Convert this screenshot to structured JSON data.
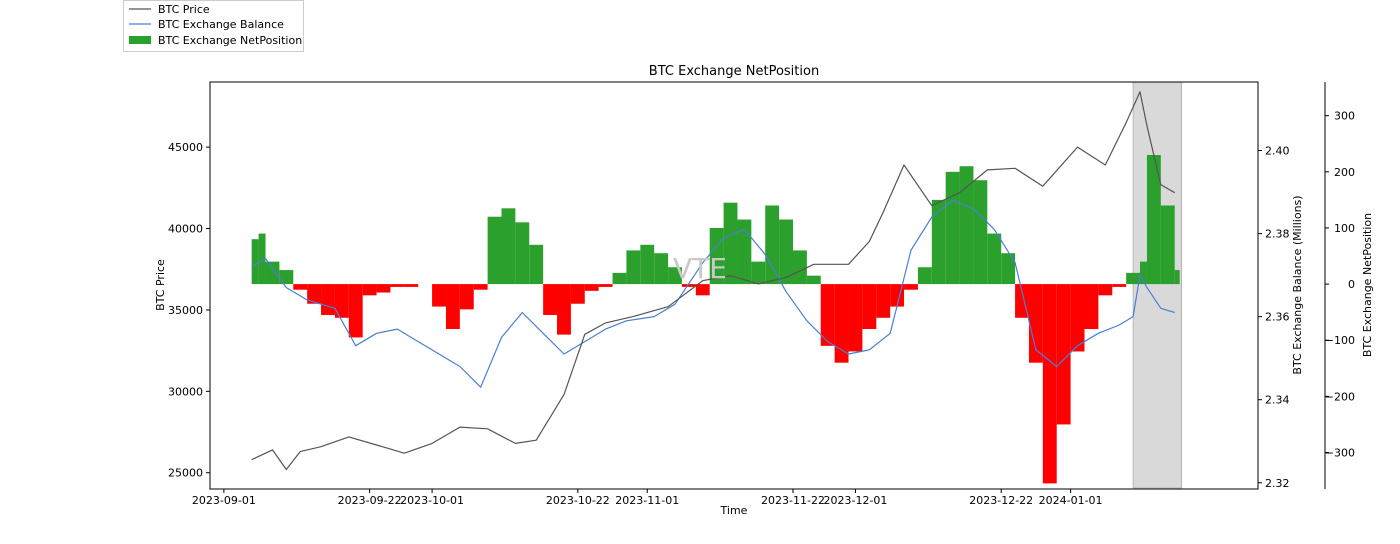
{
  "chart_data": {
    "type": "line+bar",
    "title": "BTC Exchange NetPosition",
    "xlabel": "Time",
    "watermark": "VTE",
    "x_ticks": [
      "2023-09-01",
      "2023-09-22",
      "2023-10-01",
      "2023-10-22",
      "2023-11-01",
      "2023-11-22",
      "2023-12-01",
      "2023-12-22",
      "2024-01-01"
    ],
    "x_range": [
      "2023-08-30",
      "2024-01-28"
    ],
    "highlight_range": [
      "2024-01-10",
      "2024-01-17"
    ],
    "axes": {
      "left": {
        "label": "BTC Price",
        "range": [
          24000,
          49000
        ],
        "ticks": [
          25000,
          30000,
          35000,
          40000,
          45000
        ]
      },
      "right1": {
        "label": "BTC Exchange Balance (Millions)",
        "range": [
          2.3185,
          2.4165
        ],
        "ticks": [
          "2.32",
          "2.34",
          "2.36",
          "2.38",
          "2.40"
        ]
      },
      "right2": {
        "label": "BTC Exchange NetPosition",
        "range": [
          -365,
          360
        ],
        "ticks": [
          300,
          200,
          100,
          0,
          -100,
          -200,
          -300
        ]
      }
    },
    "legend": [
      {
        "name": "BTC Price",
        "color": "#555555",
        "kind": "line"
      },
      {
        "name": "BTC Exchange Balance",
        "color": "#4a7fd4",
        "kind": "line"
      },
      {
        "name": "BTC Exchange NetPosition",
        "color": "#2ca02c",
        "kind": "bar"
      }
    ],
    "colors": {
      "positive": "#2ca02c",
      "negative": "#ff0000",
      "price": "#555555",
      "balance": "#4a7fd4",
      "highlight": "#d9d9d9"
    },
    "series": [
      {
        "name": "BTC Price",
        "axis": "left",
        "dates": [
          "2023-09-05",
          "2023-09-08",
          "2023-09-10",
          "2023-09-12",
          "2023-09-15",
          "2023-09-19",
          "2023-09-23",
          "2023-09-27",
          "2023-10-01",
          "2023-10-05",
          "2023-10-09",
          "2023-10-13",
          "2023-10-16",
          "2023-10-20",
          "2023-10-23",
          "2023-10-26",
          "2023-10-30",
          "2023-11-04",
          "2023-11-09",
          "2023-11-13",
          "2023-11-17",
          "2023-11-21",
          "2023-11-25",
          "2023-11-30",
          "2023-12-03",
          "2023-12-05",
          "2023-12-08",
          "2023-12-12",
          "2023-12-16",
          "2023-12-20",
          "2023-12-24",
          "2023-12-28",
          "2024-01-02",
          "2024-01-06",
          "2024-01-09",
          "2024-01-11",
          "2024-01-12",
          "2024-01-14",
          "2024-01-16"
        ],
        "values": [
          25800,
          26400,
          25200,
          26300,
          26600,
          27200,
          26700,
          26200,
          26800,
          27800,
          27700,
          26800,
          27000,
          29800,
          33500,
          34200,
          34600,
          35200,
          36800,
          37100,
          36600,
          37000,
          37800,
          37800,
          39200,
          41000,
          43900,
          41400,
          42200,
          43600,
          43700,
          42600,
          45000,
          43900,
          46500,
          48400,
          46300,
          42700,
          42200
        ]
      },
      {
        "name": "BTC Exchange Balance",
        "axis": "right1",
        "unit": "millions",
        "dates": [
          "2023-09-05",
          "2023-09-07",
          "2023-09-10",
          "2023-09-13",
          "2023-09-17",
          "2023-09-20",
          "2023-09-23",
          "2023-09-26",
          "2023-09-29",
          "2023-10-02",
          "2023-10-05",
          "2023-10-08",
          "2023-10-11",
          "2023-10-14",
          "2023-10-17",
          "2023-10-20",
          "2023-10-23",
          "2023-10-26",
          "2023-10-29",
          "2023-11-02",
          "2023-11-05",
          "2023-11-07",
          "2023-11-09",
          "2023-11-12",
          "2023-11-15",
          "2023-11-18",
          "2023-11-21",
          "2023-11-24",
          "2023-11-27",
          "2023-11-30",
          "2023-12-03",
          "2023-12-06",
          "2023-12-09",
          "2023-12-12",
          "2023-12-15",
          "2023-12-18",
          "2023-12-21",
          "2023-12-24",
          "2023-12-27",
          "2023-12-30",
          "2024-01-02",
          "2024-01-05",
          "2024-01-08",
          "2024-01-10",
          "2024-01-11",
          "2024-01-12",
          "2024-01-14",
          "2024-01-16"
        ],
        "values": [
          2.372,
          2.374,
          2.367,
          2.364,
          2.362,
          2.353,
          2.356,
          2.357,
          2.354,
          2.351,
          2.348,
          2.343,
          2.355,
          2.361,
          2.356,
          2.351,
          2.354,
          2.357,
          2.359,
          2.36,
          2.363,
          2.368,
          2.373,
          2.379,
          2.381,
          2.375,
          2.366,
          2.359,
          2.354,
          2.351,
          2.352,
          2.356,
          2.376,
          2.384,
          2.388,
          2.386,
          2.381,
          2.373,
          2.352,
          2.348,
          2.353,
          2.356,
          2.358,
          2.36,
          2.37,
          2.367,
          2.362,
          2.361
        ]
      },
      {
        "name": "BTC Exchange NetPosition",
        "axis": "right2",
        "kind": "bar",
        "dates": [
          "2023-09-05",
          "2023-09-06",
          "2023-09-07",
          "2023-09-09",
          "2023-09-11",
          "2023-09-13",
          "2023-09-15",
          "2023-09-17",
          "2023-09-19",
          "2023-09-21",
          "2023-09-23",
          "2023-09-25",
          "2023-09-27",
          "2023-09-29",
          "2023-10-01",
          "2023-10-03",
          "2023-10-05",
          "2023-10-07",
          "2023-10-09",
          "2023-10-11",
          "2023-10-13",
          "2023-10-15",
          "2023-10-17",
          "2023-10-19",
          "2023-10-21",
          "2023-10-23",
          "2023-10-25",
          "2023-10-27",
          "2023-10-29",
          "2023-10-31",
          "2023-11-02",
          "2023-11-04",
          "2023-11-06",
          "2023-11-08",
          "2023-11-10",
          "2023-11-12",
          "2023-11-14",
          "2023-11-16",
          "2023-11-18",
          "2023-11-20",
          "2023-11-22",
          "2023-11-24",
          "2023-11-26",
          "2023-11-28",
          "2023-11-30",
          "2023-12-02",
          "2023-12-04",
          "2023-12-06",
          "2023-12-08",
          "2023-12-10",
          "2023-12-12",
          "2023-12-14",
          "2023-12-16",
          "2023-12-18",
          "2023-12-20",
          "2023-12-22",
          "2023-12-24",
          "2023-12-26",
          "2023-12-28",
          "2023-12-30",
          "2024-01-01",
          "2024-01-03",
          "2024-01-05",
          "2024-01-07",
          "2024-01-09",
          "2024-01-11",
          "2024-01-12",
          "2024-01-14",
          "2024-01-16"
        ],
        "values": [
          80,
          90,
          40,
          25,
          -10,
          -35,
          -55,
          -60,
          -95,
          -20,
          -15,
          -5,
          -5,
          0,
          -40,
          -80,
          -45,
          -10,
          120,
          135,
          110,
          70,
          -55,
          -90,
          -35,
          -12,
          -5,
          20,
          60,
          70,
          55,
          30,
          -5,
          -20,
          100,
          145,
          115,
          40,
          140,
          115,
          60,
          15,
          -110,
          -140,
          -120,
          -80,
          -60,
          -40,
          -10,
          30,
          150,
          200,
          210,
          185,
          90,
          55,
          -60,
          -140,
          -355,
          -250,
          -120,
          -80,
          -20,
          -5,
          20,
          40,
          230,
          140,
          25
        ]
      }
    ]
  }
}
